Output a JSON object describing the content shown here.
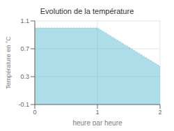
{
  "chart_data": {
    "type": "area",
    "title": "Evolution de la température",
    "xlabel": "heure par heure",
    "ylabel": "Température en °C",
    "x": [
      0,
      1,
      2
    ],
    "values": [
      1.0,
      1.0,
      0.45
    ],
    "xlim": [
      0,
      2
    ],
    "ylim": [
      -0.1,
      1.1
    ],
    "xticks": [
      0,
      1,
      2
    ],
    "yticks": [
      -0.1,
      0.3,
      0.7,
      1.1
    ],
    "grid": true,
    "line_style": "dotted",
    "color": "#5bbcd4"
  }
}
